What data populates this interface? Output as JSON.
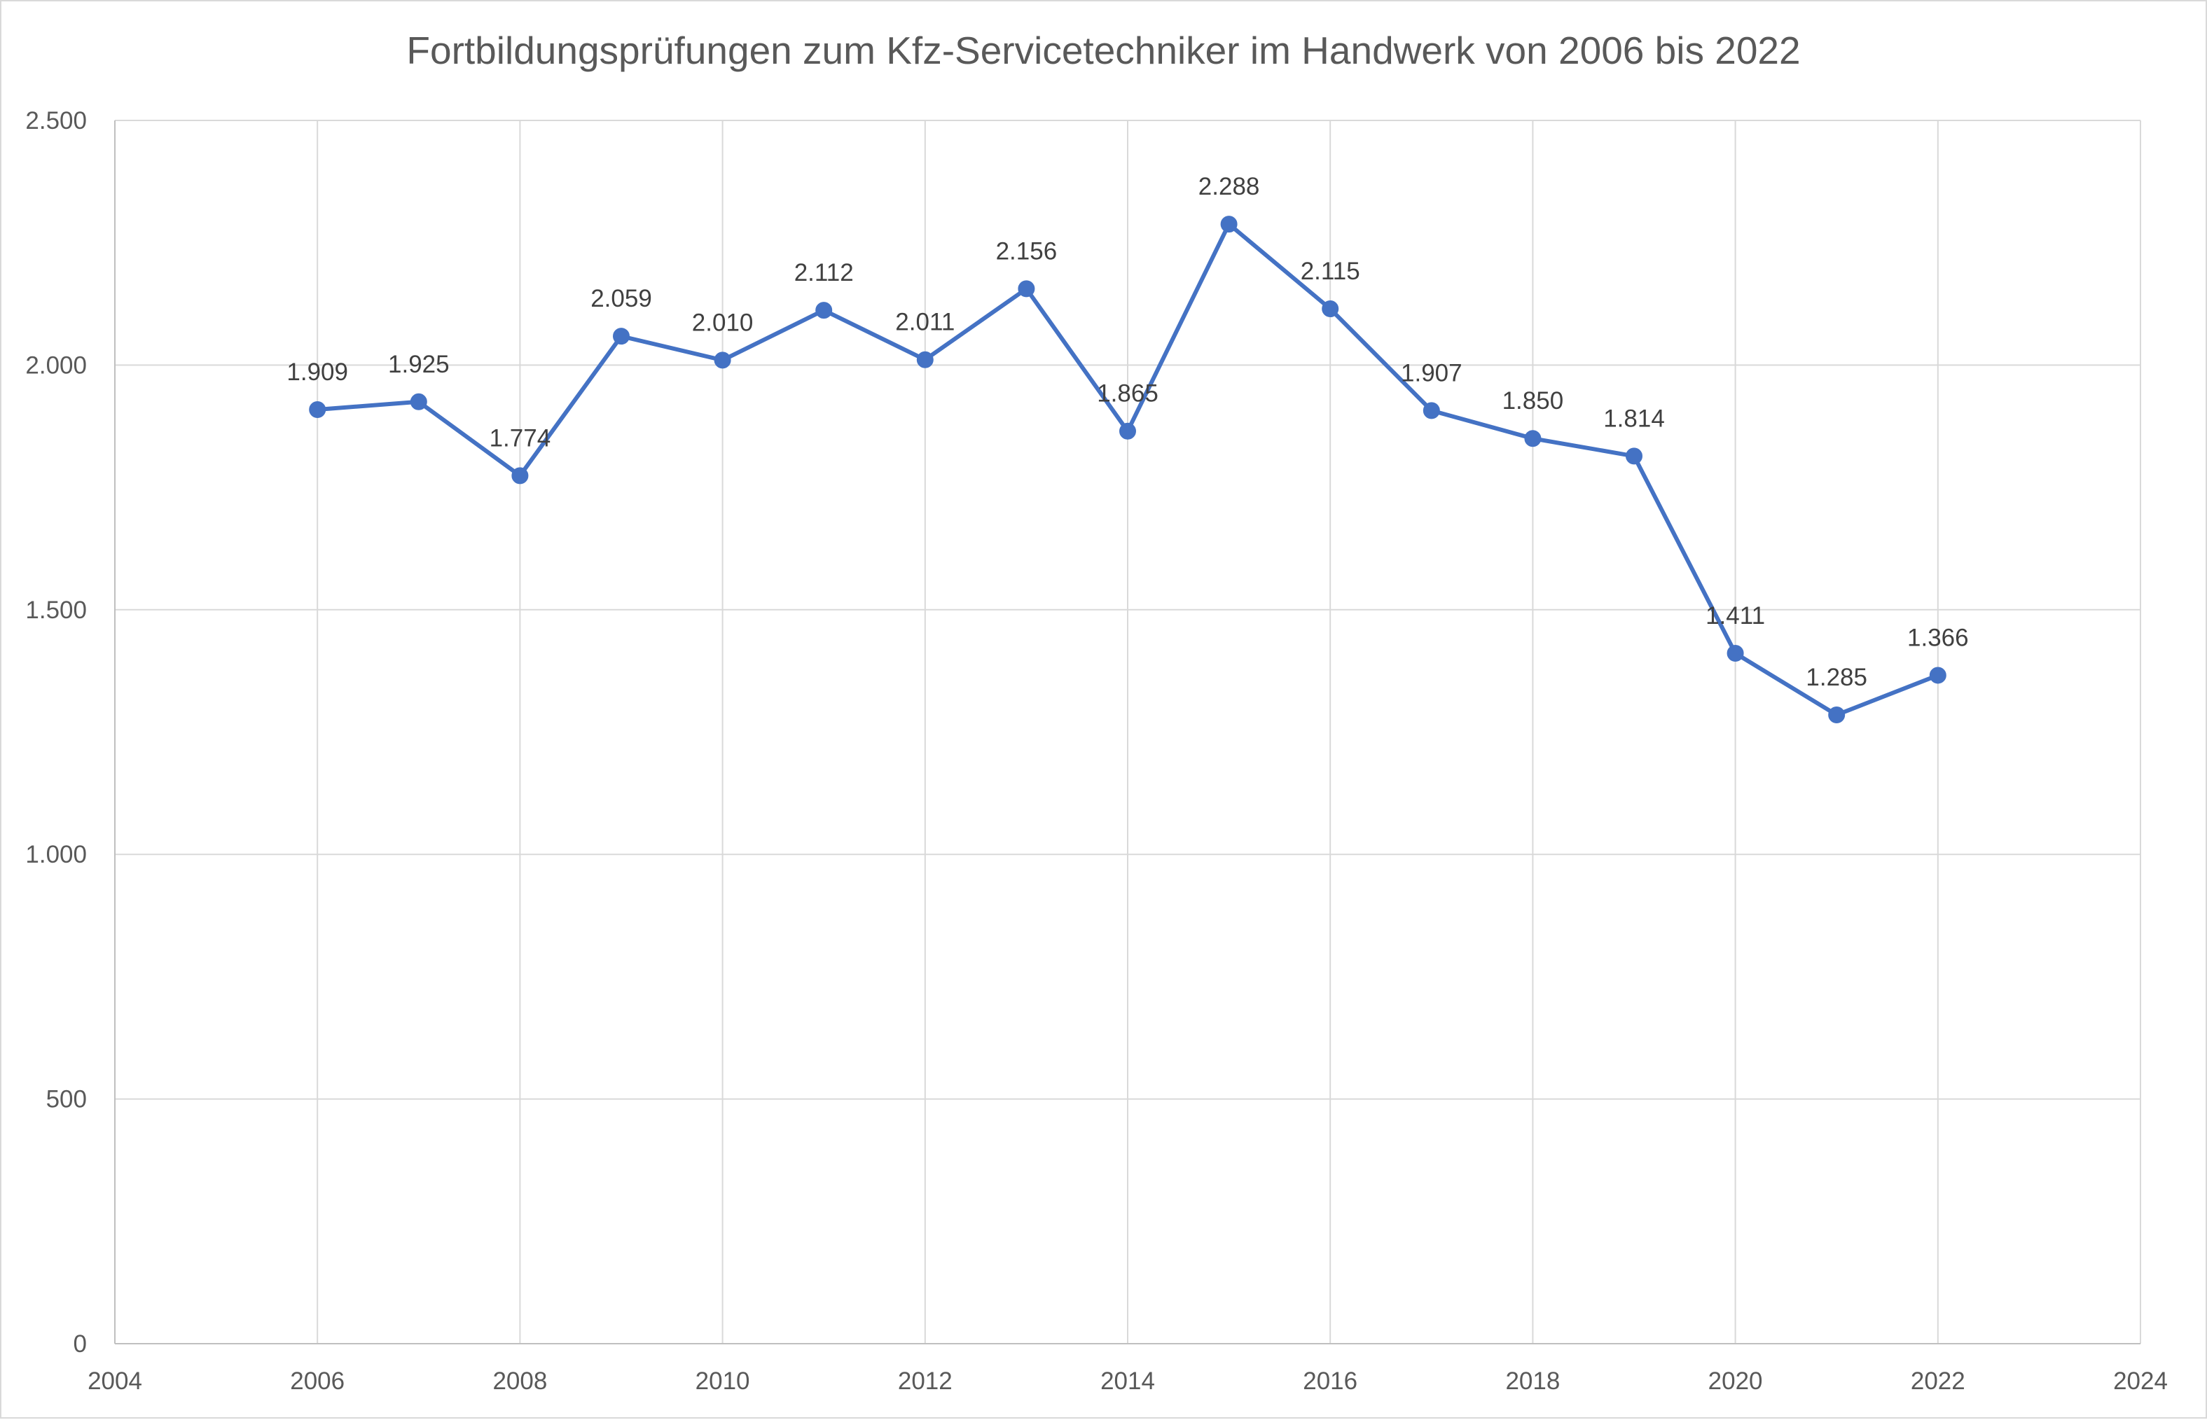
{
  "chart_data": {
    "type": "line",
    "title": "Fortbildungsprüfungen zum Kfz-Servicetechniker im Handwerk von 2006 bis 2022",
    "xlabel": "",
    "ylabel": "",
    "x": [
      2006,
      2007,
      2008,
      2009,
      2010,
      2011,
      2012,
      2013,
      2014,
      2015,
      2016,
      2017,
      2018,
      2019,
      2020,
      2021,
      2022
    ],
    "series": [
      {
        "values": [
          1909,
          1925,
          1774,
          2059,
          2010,
          2112,
          2011,
          2156,
          1865,
          2288,
          2115,
          1907,
          1850,
          1814,
          1411,
          1285,
          1366
        ],
        "data_labels": [
          "1.909",
          "1.925",
          "1.774",
          "2.059",
          "2.010",
          "2.112",
          "2.011",
          "2.156",
          "1.865",
          "2.288",
          "2.115",
          "1.907",
          "1.850",
          "1.814",
          "1.411",
          "1.285",
          "1.366"
        ],
        "color": "#4472c4"
      }
    ],
    "xlim": [
      2004,
      2024
    ],
    "ylim": [
      0,
      2500
    ],
    "x_ticks": [
      2004,
      2006,
      2008,
      2010,
      2012,
      2014,
      2016,
      2018,
      2020,
      2022,
      2024
    ],
    "x_tick_labels": [
      "2004",
      "2006",
      "2008",
      "2010",
      "2012",
      "2014",
      "2016",
      "2018",
      "2020",
      "2022",
      "2024"
    ],
    "y_ticks": [
      0,
      500,
      1000,
      1500,
      2000,
      2500
    ],
    "y_tick_labels": [
      "0",
      "500",
      "1.000",
      "1.500",
      "2.000",
      "2.500"
    ],
    "grid": true,
    "legend": "none",
    "colors": {
      "line": "#4472c4",
      "grid": "#d9d9d9",
      "axis_text": "#595959",
      "label_text": "#404040"
    }
  }
}
